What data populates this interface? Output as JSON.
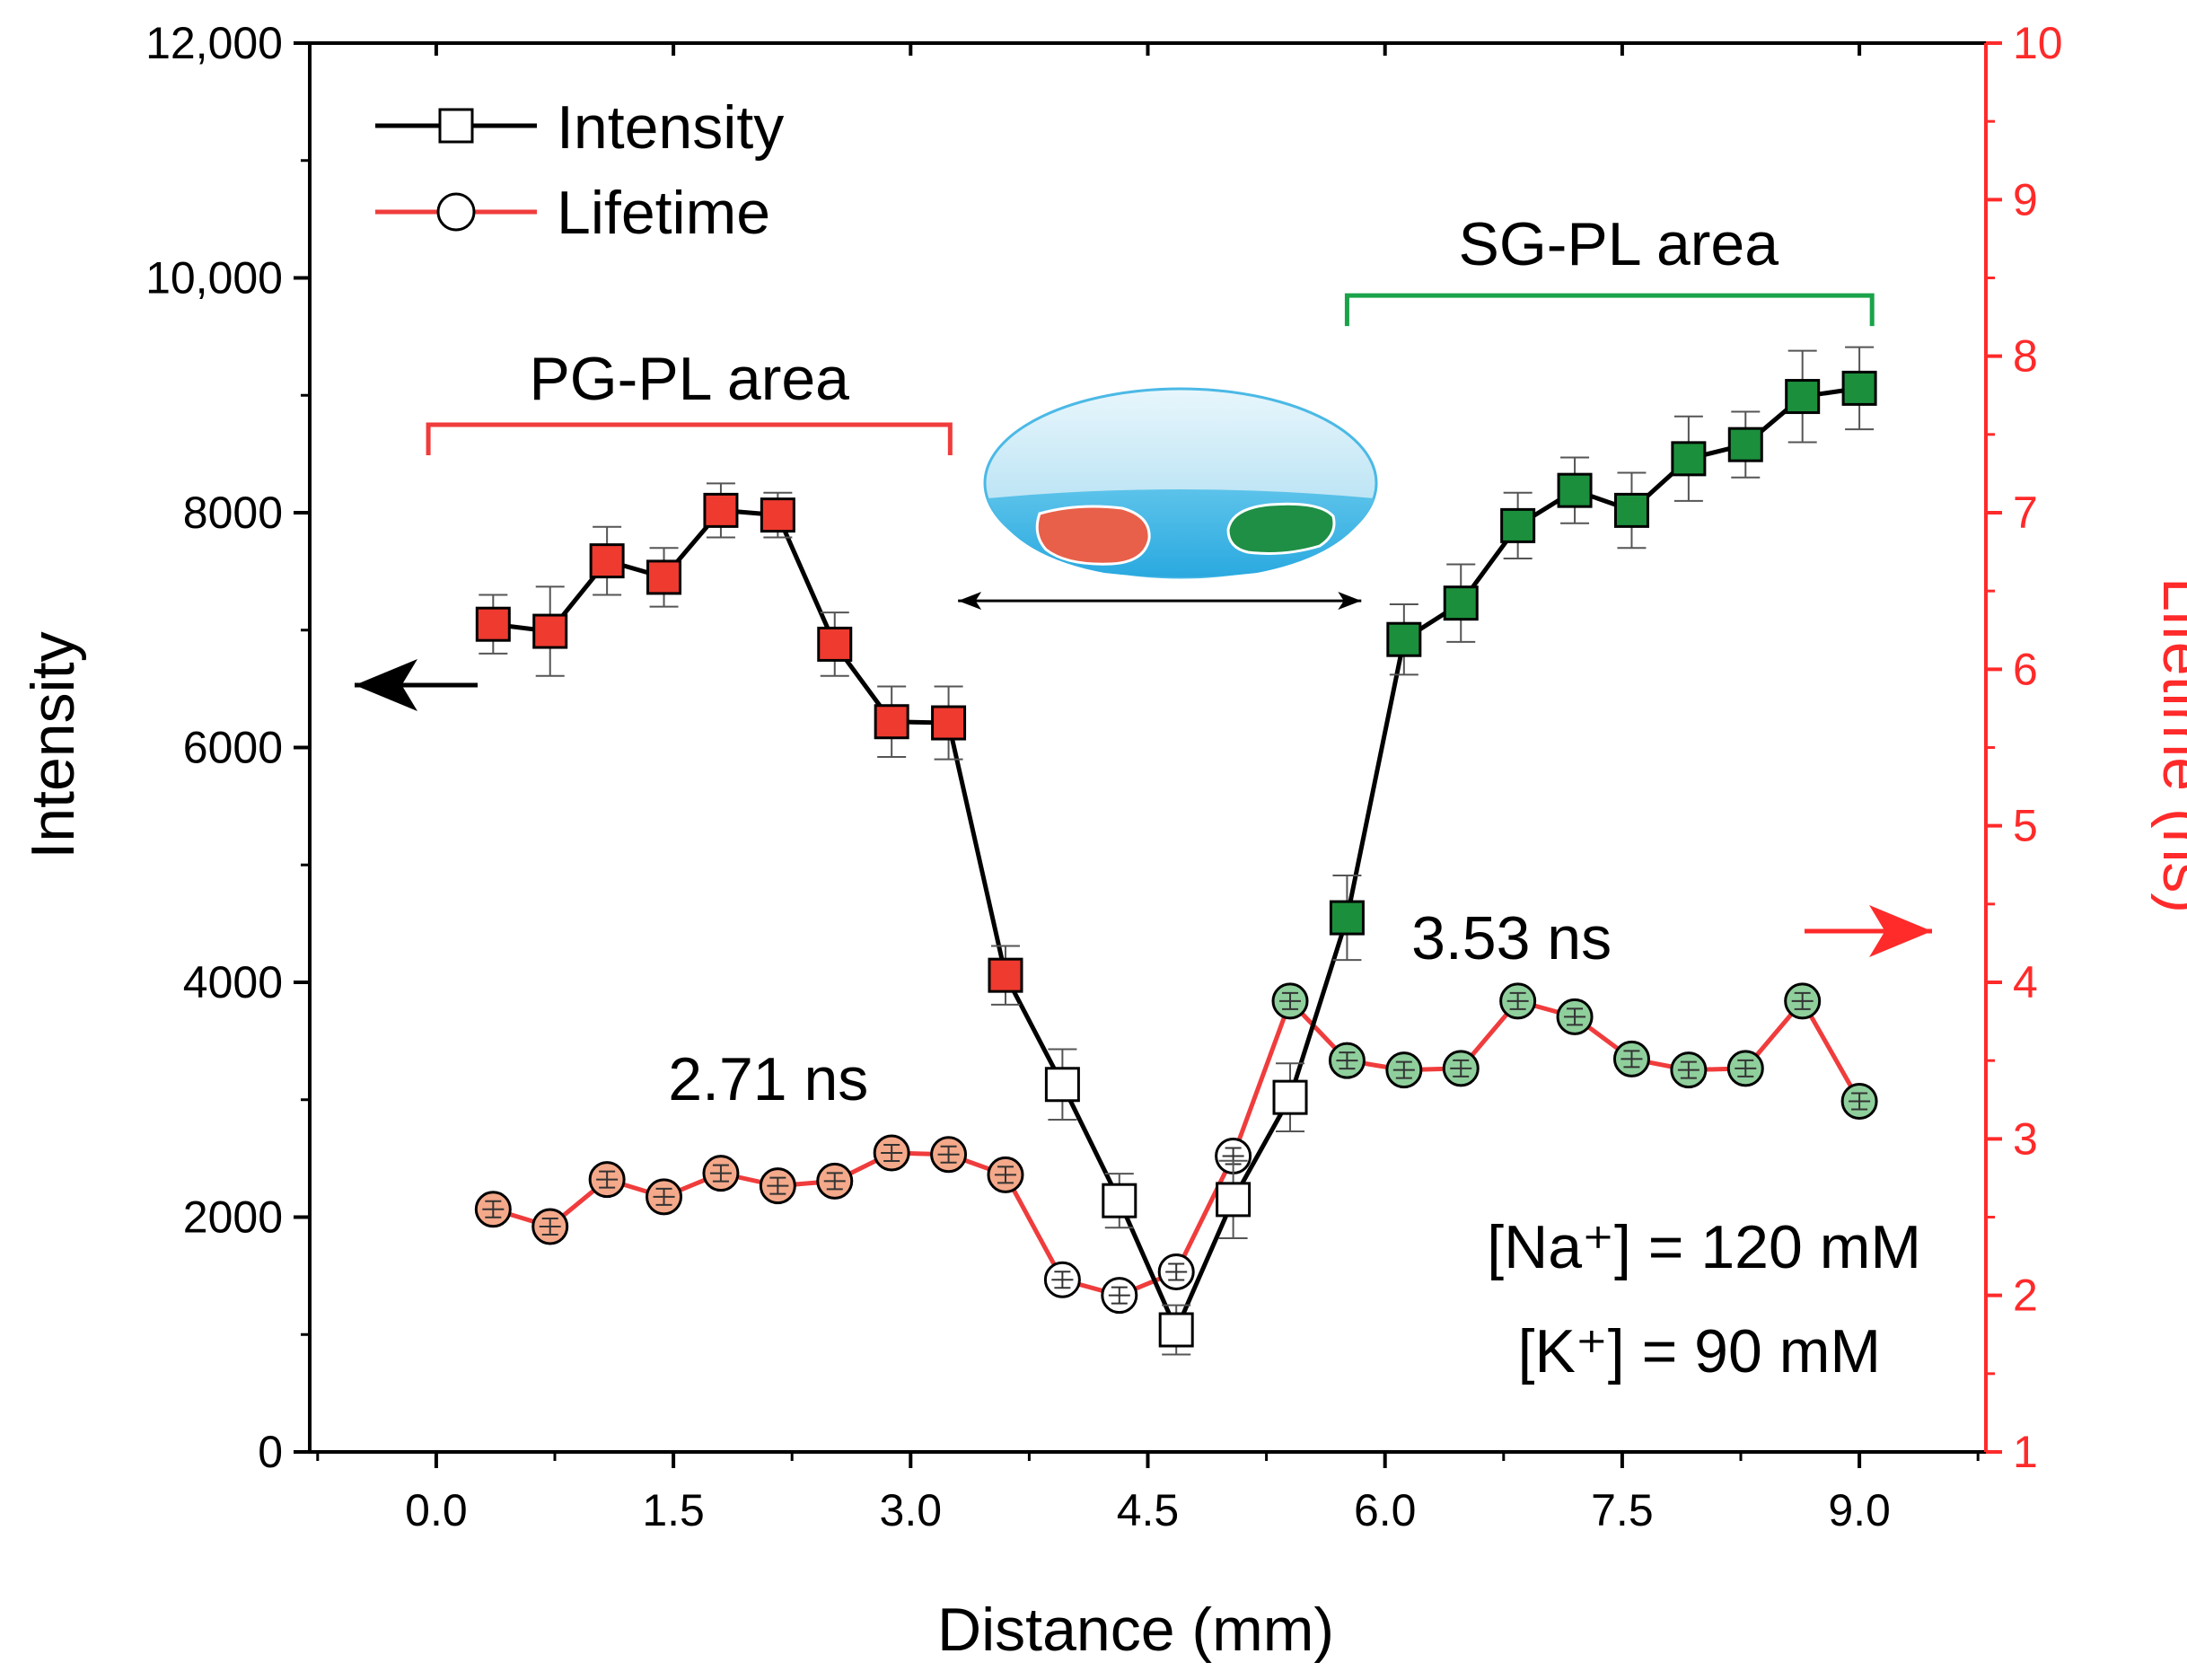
{
  "chart_data": {
    "type": "line",
    "title": "",
    "xlabel": "Distance (mm)",
    "ylabel_left": "Intensity",
    "ylabel_right": "Lifetime (ns)",
    "xlim": [
      -0.8,
      9.8
    ],
    "ylim_left": [
      0,
      12000
    ],
    "ylim_right": [
      1,
      10
    ],
    "x_ticks": [
      0.0,
      1.5,
      3.0,
      4.5,
      6.0,
      7.5,
      9.0
    ],
    "x_tick_labels": [
      "0.0",
      "1.5",
      "3.0",
      "4.5",
      "6.0",
      "7.5",
      "9.0"
    ],
    "y_left_ticks": [
      0,
      2000,
      4000,
      6000,
      8000,
      10000,
      12000
    ],
    "y_left_tick_labels": [
      "0",
      "2000",
      "4000",
      "6000",
      "8000",
      "10,000",
      "12,000"
    ],
    "y_right_ticks": [
      1,
      2,
      3,
      4,
      5,
      6,
      7,
      8,
      9,
      10
    ],
    "y_right_tick_labels": [
      "1",
      "2",
      "3",
      "4",
      "5",
      "6",
      "7",
      "8",
      "9",
      "10"
    ],
    "colors": {
      "axis_left": "#000000",
      "axis_right": "#ff2a2a",
      "intensity_line": "#000000",
      "lifetime_line": "#f03c3c",
      "pg_square": "#ee3a2f",
      "sg_square": "#1c8f3c",
      "pg_circle": "#f4a98a",
      "sg_circle": "#8fcf9c",
      "bracket_pg": "#f03c3c",
      "bracket_sg": "#1aa34a"
    },
    "series": [
      {
        "name": "Intensity",
        "axis": "left",
        "marker": "square",
        "x": [
          0.36,
          0.72,
          1.08,
          1.44,
          1.8,
          2.16,
          2.52,
          2.88,
          3.24,
          3.6,
          3.96,
          4.32,
          4.68,
          5.04,
          5.4,
          5.76,
          6.12,
          6.48,
          6.84,
          7.2,
          7.56,
          7.92,
          8.28,
          8.64,
          9.0
        ],
        "values": [
          7050,
          6990,
          7590,
          7450,
          8020,
          7980,
          6880,
          6220,
          6210,
          4060,
          3130,
          2140,
          1040,
          2150,
          3020,
          4550,
          6920,
          7230,
          7890,
          8190,
          8020,
          8460,
          8580,
          8990,
          9060
        ],
        "errors": [
          250,
          380,
          290,
          250,
          230,
          190,
          270,
          300,
          310,
          250,
          300,
          230,
          210,
          330,
          290,
          360,
          300,
          330,
          280,
          280,
          320,
          360,
          280,
          390,
          350
        ],
        "group": [
          "pg",
          "pg",
          "pg",
          "pg",
          "pg",
          "pg",
          "pg",
          "pg",
          "pg",
          "pg",
          "open",
          "open",
          "open",
          "open",
          "open",
          "sg",
          "sg",
          "sg",
          "sg",
          "sg",
          "sg",
          "sg",
          "sg",
          "sg",
          "sg"
        ]
      },
      {
        "name": "Lifetime",
        "axis": "right",
        "marker": "circle",
        "x": [
          0.36,
          0.72,
          1.08,
          1.44,
          1.8,
          2.16,
          2.52,
          2.88,
          3.24,
          3.6,
          3.96,
          4.32,
          4.68,
          5.04,
          5.4,
          5.76,
          6.12,
          6.48,
          6.84,
          7.2,
          7.56,
          7.92,
          8.28,
          8.64,
          9.0
        ],
        "values": [
          2.55,
          2.44,
          2.74,
          2.63,
          2.78,
          2.7,
          2.73,
          2.91,
          2.9,
          2.77,
          2.1,
          2.0,
          2.15,
          2.89,
          3.88,
          3.5,
          3.44,
          3.45,
          3.88,
          3.78,
          3.51,
          3.44,
          3.45,
          3.88,
          3.24
        ],
        "group": [
          "pg",
          "pg",
          "pg",
          "pg",
          "pg",
          "pg",
          "pg",
          "pg",
          "pg",
          "pg",
          "open",
          "open",
          "open",
          "open",
          "sg",
          "sg",
          "sg",
          "sg",
          "sg",
          "sg",
          "sg",
          "sg",
          "sg",
          "sg",
          "sg"
        ]
      }
    ],
    "legend": {
      "placement": "top-left",
      "entries": [
        {
          "label": "Intensity",
          "marker": "square",
          "color": "#000000"
        },
        {
          "label": "Lifetime",
          "marker": "circle",
          "color": "#f03c3c"
        }
      ]
    },
    "annotations": {
      "pg_area": {
        "label": "PG-PL area",
        "x_start": -0.05,
        "x_end": 3.25,
        "y": 8750
      },
      "sg_area": {
        "label": "SG-PL area",
        "x_start": 5.76,
        "x_end": 9.08,
        "y": 9850
      },
      "pg_lifetime": {
        "label": "2.71 ns",
        "x": 2.1,
        "y_right": 3.25
      },
      "sg_lifetime": {
        "label": "3.53 ns",
        "x": 6.8,
        "y_right": 4.15
      },
      "na_conc": "[Na⁺] = 120 mM",
      "k_conc": "[K⁺] = 90 mM",
      "double_arrow": {
        "x_start": 3.3,
        "x_end": 5.85,
        "y": 7250
      }
    }
  }
}
